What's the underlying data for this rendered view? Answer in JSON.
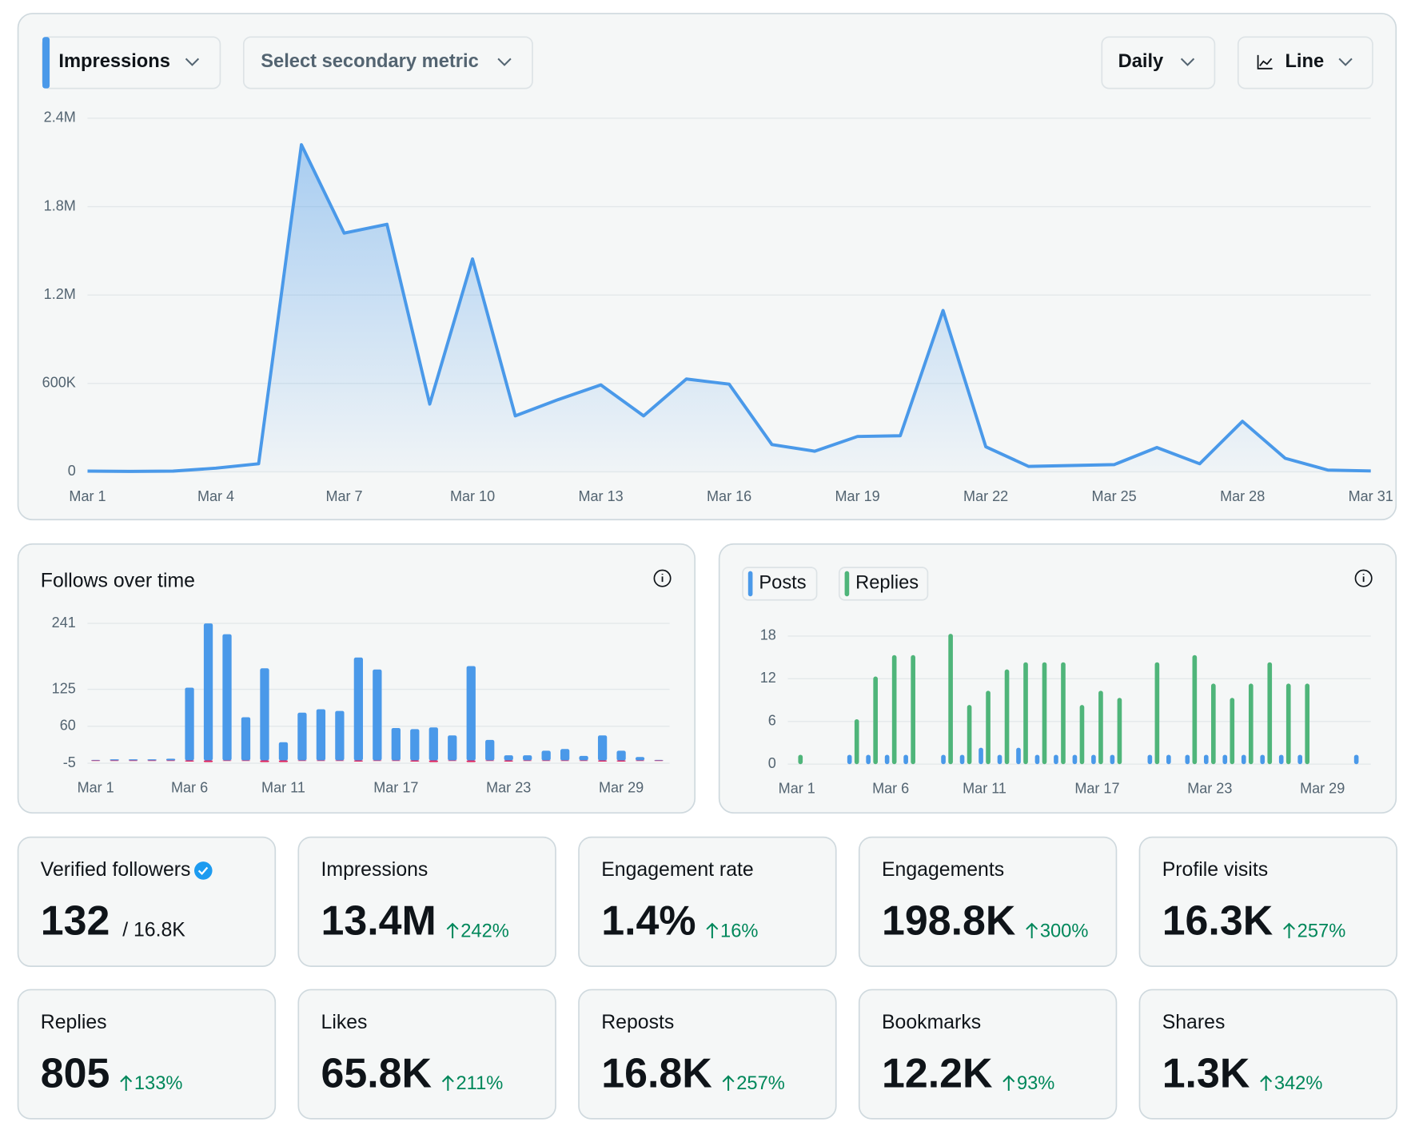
{
  "controls": {
    "secondary": "Select secondary metric",
    "interval": "Daily",
    "chart_style": "Line"
  },
  "chart_data": [
    {
      "type": "area-line",
      "series": [
        {
          "name": "Impressions",
          "color": "#4a99e9",
          "values": [
            5000,
            3000,
            5000,
            25000,
            55000,
            2220000,
            1620000,
            1680000,
            460000,
            1445000,
            380000,
            490000,
            590000,
            380000,
            630000,
            595000,
            185000,
            140000,
            240000,
            245000,
            1095000,
            170000,
            37000,
            43000,
            49000,
            165000,
            55000,
            343000,
            92000,
            12000,
            6000
          ]
        }
      ],
      "categories": [
        "Mar 1",
        null,
        null,
        "Mar 4",
        null,
        null,
        "Mar 7",
        null,
        null,
        "Mar 10",
        null,
        null,
        "Mar 13",
        null,
        null,
        "Mar 16",
        null,
        null,
        "Mar 19",
        null,
        null,
        "Mar 22",
        null,
        null,
        "Mar 25",
        null,
        null,
        "Mar 28",
        null,
        null,
        "Mar 31"
      ],
      "ylim": [
        0,
        2400000
      ],
      "yticks": [
        0,
        {
          "value": 600000,
          "label": "600K"
        },
        {
          "value": 1200000,
          "label": "1.2M"
        },
        {
          "value": 1800000,
          "label": "1.8M"
        },
        {
          "value": 2400000,
          "label": "2.4M"
        }
      ],
      "grid": true
    },
    {
      "type": "bar",
      "title": "Follows over time",
      "categories": [
        "Mar 1",
        null,
        null,
        null,
        null,
        "Mar 6",
        null,
        null,
        null,
        null,
        "Mar 11",
        null,
        null,
        null,
        null,
        null,
        "Mar 17",
        null,
        null,
        null,
        null,
        null,
        "Mar 23",
        null,
        null,
        null,
        null,
        null,
        "Mar 29",
        null,
        null
      ],
      "series": [
        {
          "color": "#4a99e9",
          "values": [
            1,
            2,
            2,
            2,
            3,
            128,
            241,
            222,
            76,
            162,
            32,
            84,
            90,
            87,
            181,
            160,
            57,
            55,
            58,
            44,
            166,
            36,
            9,
            9,
            17,
            20,
            8,
            44,
            17,
            6,
            1
          ]
        },
        {
          "color": "#e0245e",
          "values": [
            -1,
            -1,
            -1,
            -1,
            -1,
            -2,
            -3,
            -1,
            -1,
            -3,
            -3,
            -1,
            -1,
            -1,
            -2,
            -1,
            -1,
            -2,
            -3,
            -1,
            -3,
            -1,
            -2,
            -1,
            -1,
            -1,
            -1,
            -2,
            -2,
            -1,
            -1
          ]
        }
      ],
      "ylim": [
        -5,
        241
      ],
      "yticks": [
        -5,
        60,
        125,
        241
      ],
      "grid": true
    },
    {
      "type": "grouped-bar",
      "categories": [
        "Mar 1",
        null,
        null,
        null,
        null,
        "Mar 6",
        null,
        null,
        null,
        null,
        "Mar 11",
        null,
        null,
        null,
        null,
        null,
        "Mar 17",
        null,
        null,
        null,
        null,
        null,
        "Mar 23",
        null,
        null,
        null,
        null,
        null,
        "Mar 29",
        null,
        null
      ],
      "series": [
        {
          "name": "Posts",
          "color": "#4a99e9",
          "values": [
            0,
            0,
            0,
            1,
            1,
            1,
            1,
            0,
            1,
            1,
            2,
            1,
            2,
            1,
            1,
            1,
            1,
            1,
            0,
            1,
            1,
            1,
            1,
            1,
            1,
            1,
            1,
            1,
            0,
            0,
            1
          ]
        },
        {
          "name": "Replies",
          "color": "#4fb57a",
          "values": [
            1,
            0,
            0,
            6,
            12,
            15,
            15,
            0,
            18,
            8,
            10,
            13,
            14,
            14,
            14,
            8,
            10,
            9,
            0,
            14,
            0,
            15,
            11,
            9,
            11,
            14,
            11,
            11,
            0,
            0,
            0
          ]
        }
      ],
      "ylim": [
        0,
        18
      ],
      "yticks": [
        0,
        6,
        12,
        18
      ],
      "grid": true
    }
  ],
  "stats": [
    {
      "label": "Verified followers",
      "value": "132",
      "total": "/ 16.8K"
    },
    {
      "label": "Impressions",
      "value": "13.4M",
      "change": "242%"
    },
    {
      "label": "Engagement rate",
      "value": "1.4%",
      "change": "16%"
    },
    {
      "label": "Engagements",
      "value": "198.8K",
      "change": "300%"
    },
    {
      "label": "Profile visits",
      "value": "16.3K",
      "change": "257%"
    },
    {
      "label": "Replies",
      "value": "805",
      "change": "133%"
    },
    {
      "label": "Likes",
      "value": "65.8K",
      "change": "211%"
    },
    {
      "label": "Reposts",
      "value": "16.8K",
      "change": "257%"
    },
    {
      "label": "Bookmarks",
      "value": "12.2K",
      "change": "93%"
    },
    {
      "label": "Shares",
      "value": "1.3K",
      "change": "342%"
    }
  ]
}
